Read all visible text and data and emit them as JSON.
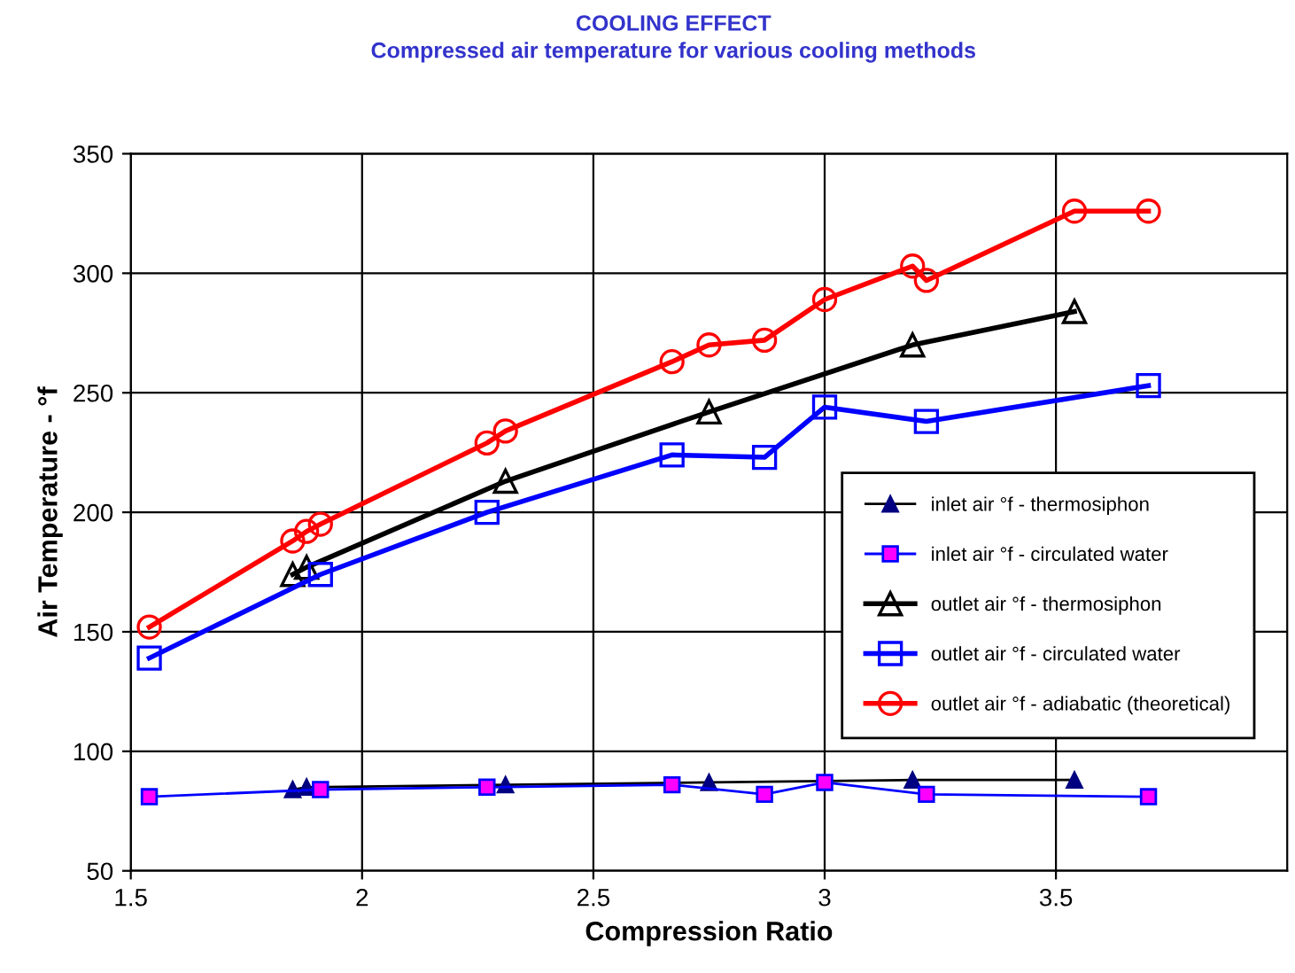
{
  "chart_data": {
    "type": "line",
    "title": "COOLING EFFECT",
    "subtitle": "Compressed air temperature for various cooling methods",
    "xlabel": "Compression Ratio",
    "ylabel": "Air Temperature - °f",
    "xlim": [
      1.5,
      4
    ],
    "xticks": [
      1.5,
      2,
      2.5,
      3,
      3.5
    ],
    "ylim": [
      50,
      350
    ],
    "yticks": [
      50,
      100,
      150,
      200,
      250,
      300,
      350
    ],
    "grid": true,
    "legend": "right",
    "series": [
      {
        "name": "inlet air °f - thermosiphon",
        "color": "#000080",
        "marker": "triangle",
        "x": [
          1.85,
          1.88,
          2.31,
          2.75,
          3.19,
          3.54
        ],
        "values": [
          84,
          85,
          86,
          87,
          88,
          88
        ]
      },
      {
        "name": "inlet air °f - circulated water",
        "color": "#ff00ff",
        "marker": "square",
        "x": [
          1.54,
          1.91,
          2.27,
          2.67,
          2.87,
          3.0,
          3.22,
          3.7
        ],
        "values": [
          81,
          84,
          85,
          86,
          82,
          87,
          82,
          81
        ]
      },
      {
        "name": "outlet air °f - thermosiphon",
        "color": "#000000",
        "marker": "triangle",
        "x": [
          1.85,
          1.88,
          2.31,
          2.75,
          3.19,
          3.54
        ],
        "values": [
          174,
          177,
          213,
          242,
          270,
          284
        ]
      },
      {
        "name": "outlet air °f - circulated water",
        "color": "#0000ff",
        "marker": "square",
        "x": [
          1.54,
          1.91,
          2.27,
          2.67,
          2.87,
          3.0,
          3.22,
          3.7
        ],
        "values": [
          139,
          174,
          200,
          224,
          223,
          244,
          238,
          253
        ]
      },
      {
        "name": "outlet air °f - adiabatic (theoretical)",
        "color": "#ff0000",
        "marker": "circle",
        "x": [
          1.54,
          1.85,
          1.88,
          1.91,
          2.27,
          2.31,
          2.67,
          2.75,
          2.87,
          3.0,
          3.19,
          3.22,
          3.54,
          3.7
        ],
        "values": [
          152,
          188,
          192,
          195,
          229,
          234,
          263,
          270,
          272,
          289,
          303,
          297,
          326,
          326
        ]
      }
    ]
  }
}
